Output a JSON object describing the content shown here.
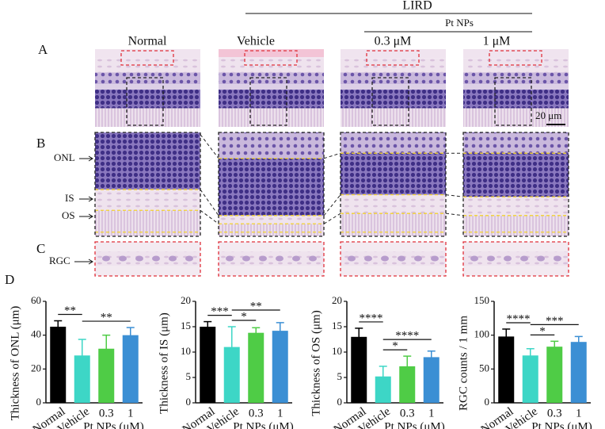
{
  "figure": {
    "title": "LIRD",
    "subgroup": "Pt NPs",
    "columns": [
      "Normal",
      "Vehicle",
      "0.3 μM",
      "1 μM"
    ],
    "panels": [
      "A",
      "B",
      "C",
      "D"
    ],
    "layers": [
      "ONL",
      "IS",
      "OS",
      "RGC"
    ],
    "scale_bar": "20 μm"
  },
  "chart_data": [
    {
      "type": "bar",
      "y_label": "Thickness of ONL (μm)",
      "categories": [
        "Normal",
        "Vehicle",
        "0.3",
        "1"
      ],
      "group_label": "Pt NPs (μM)",
      "group": [
        "0.3",
        "1"
      ],
      "values": [
        45,
        28,
        32,
        40
      ],
      "errors": [
        3.5,
        9.5,
        8,
        4.5
      ],
      "colors": [
        "#000000",
        "#3dd6c6",
        "#4fcc46",
        "#3b8fd4"
      ],
      "ylim": [
        0,
        60
      ],
      "yticks": [
        0,
        20,
        40,
        60
      ],
      "significance": [
        {
          "label": "**",
          "between": [
            "Normal",
            "Vehicle"
          ]
        },
        {
          "label": "**",
          "between": [
            "Vehicle",
            "1"
          ]
        }
      ]
    },
    {
      "type": "bar",
      "y_label": "Thickness of IS (μm)",
      "categories": [
        "Normal",
        "Vehicle",
        "0.3",
        "1"
      ],
      "group_label": "Pt NPs (μM)",
      "group": [
        "0.3",
        "1"
      ],
      "values": [
        15,
        11,
        13.8,
        14.2
      ],
      "errors": [
        1,
        4,
        1,
        1.6
      ],
      "colors": [
        "#000000",
        "#3dd6c6",
        "#4fcc46",
        "#3b8fd4"
      ],
      "ylim": [
        0,
        20
      ],
      "yticks": [
        0,
        5,
        10,
        15,
        20
      ],
      "significance": [
        {
          "label": "***",
          "between": [
            "Normal",
            "Vehicle"
          ]
        },
        {
          "label": "*",
          "between": [
            "Vehicle",
            "0.3"
          ]
        },
        {
          "label": "**",
          "between": [
            "Vehicle",
            "1"
          ]
        }
      ]
    },
    {
      "type": "bar",
      "y_label": "Thickness of OS (μm)",
      "categories": [
        "Normal",
        "Vehicle",
        "0.3",
        "1"
      ],
      "group_label": "Pt NPs (μM)",
      "group": [
        "0.3",
        "1"
      ],
      "values": [
        13,
        5.2,
        7.2,
        9
      ],
      "errors": [
        1.7,
        2,
        2,
        1.2
      ],
      "colors": [
        "#000000",
        "#3dd6c6",
        "#4fcc46",
        "#3b8fd4"
      ],
      "ylim": [
        0,
        20
      ],
      "yticks": [
        0,
        5,
        10,
        15,
        20
      ],
      "significance": [
        {
          "label": "****",
          "between": [
            "Normal",
            "Vehicle"
          ]
        },
        {
          "label": "*",
          "between": [
            "Vehicle",
            "0.3"
          ]
        },
        {
          "label": "****",
          "between": [
            "Vehicle",
            "1"
          ]
        }
      ]
    },
    {
      "type": "bar",
      "y_label": "RGC counts / 1 mm",
      "categories": [
        "Normal",
        "Vehicle",
        "0.3",
        "1"
      ],
      "group_label": "Pt NPs (μM)",
      "group": [
        "0.3",
        "1"
      ],
      "values": [
        98,
        70,
        83,
        90
      ],
      "errors": [
        11,
        10,
        8,
        8
      ],
      "colors": [
        "#000000",
        "#3dd6c6",
        "#4fcc46",
        "#3b8fd4"
      ],
      "ylim": [
        0,
        150
      ],
      "yticks": [
        0,
        50,
        100,
        150
      ],
      "significance": [
        {
          "label": "****",
          "between": [
            "Normal",
            "Vehicle"
          ]
        },
        {
          "label": "*",
          "between": [
            "Vehicle",
            "0.3"
          ]
        },
        {
          "label": "***",
          "between": [
            "Vehicle",
            "1"
          ]
        }
      ]
    }
  ]
}
